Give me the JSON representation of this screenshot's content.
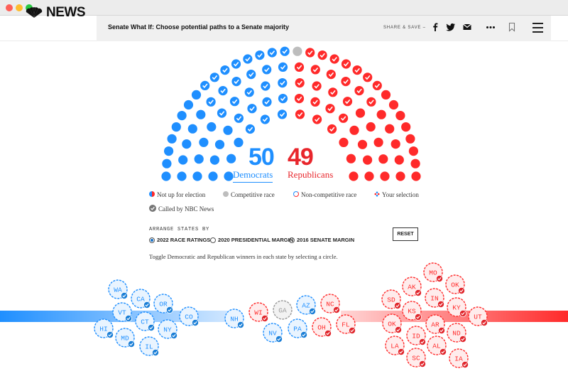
{
  "browser": {
    "traffic_lights": [
      "close",
      "minimize",
      "zoom"
    ]
  },
  "header": {
    "logo_text": "NEWS",
    "title": "Senate What If: Choose potential paths to a Senate majority",
    "share_label": "SHARE & SAVE –",
    "icons": [
      "facebook-icon",
      "twitter-icon",
      "email-icon",
      "more-icon",
      "bookmark-icon",
      "menu-icon"
    ]
  },
  "colors": {
    "dem": "#1f8fff",
    "rep": "#ff2a2a",
    "gray": "#bdbdbd",
    "check_bg": "#1a7ed6",
    "check_bg_rep": "#e0262c"
  },
  "totals": {
    "dem_count": "50",
    "dem_label": "Democrats",
    "rep_count": "49",
    "rep_label": "Republicans"
  },
  "legend": [
    {
      "key": "not_up",
      "label": "Not up for election"
    },
    {
      "key": "competitive",
      "label": "Competitive race"
    },
    {
      "key": "non_competitive",
      "label": "Non-competitive race"
    },
    {
      "key": "your_selection",
      "label": "Your selection"
    },
    {
      "key": "called",
      "label": "Called by NBC News"
    }
  ],
  "arrange": {
    "label": "ARRANGE STATES BY",
    "options": [
      "2022 RACE RATINGS",
      "2020 PRESIDENTIAL MARGIN",
      "2016 SENATE MARGIN"
    ],
    "selected": "2022 RACE RATINGS",
    "reset_label": "RESET"
  },
  "instruction": "Toggle Democratic and Republican winners in each state by selecting a circle.",
  "seats": {
    "dem": 50,
    "rep": 49,
    "competitive": 1
  },
  "states": {
    "dem": [
      "WA",
      "CA",
      "OR",
      "VT",
      "CT",
      "CO",
      "HI",
      "MD",
      "NY",
      "IL"
    ],
    "tossup": [
      "NH",
      "WI",
      "GA",
      "AZ",
      "NC",
      "NV",
      "PA",
      "OH",
      "FL"
    ],
    "rep": [
      "MO",
      "AK",
      "OK",
      "SD",
      "IN",
      "KS",
      "KY",
      "UT",
      "OK",
      "AR",
      "ID",
      "ND",
      "LA",
      "AL",
      "SC",
      "IA"
    ]
  }
}
